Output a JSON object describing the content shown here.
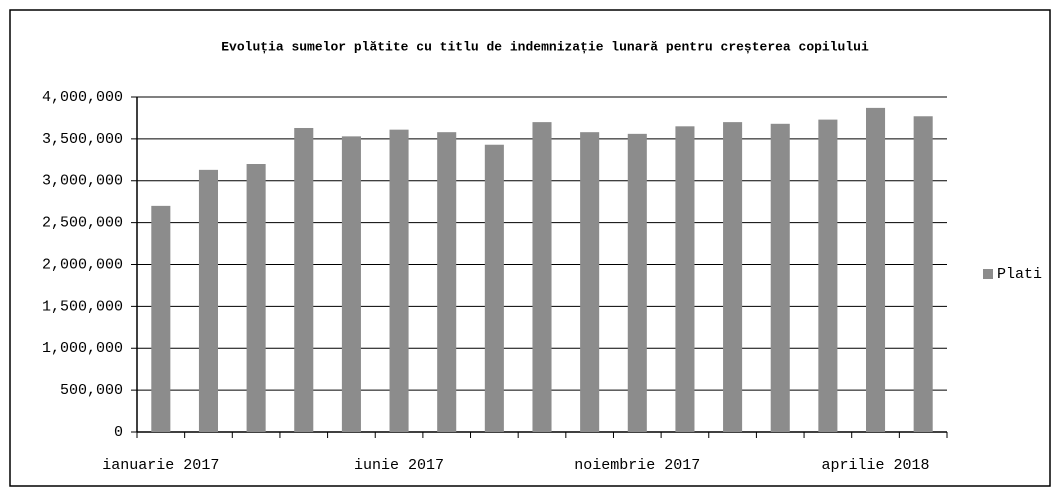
{
  "chart_data": {
    "type": "bar",
    "title": "Evoluția sumelor plătite cu titlu de indemnizație lunară pentru creșterea copilului",
    "categories": [
      "ianuarie 2017",
      null,
      null,
      null,
      null,
      "iunie 2017",
      null,
      null,
      null,
      null,
      "noiembrie 2017",
      null,
      null,
      null,
      null,
      "aprilie 2018",
      null
    ],
    "series": [
      {
        "name": "Plati",
        "color": "#8c8c8c",
        "values": [
          2700000,
          3130000,
          3200000,
          3630000,
          3530000,
          3610000,
          3580000,
          3430000,
          3700000,
          3580000,
          3560000,
          3650000,
          3700000,
          3680000,
          3730000,
          3870000,
          3770000
        ]
      }
    ],
    "ylim": [
      0,
      4000000
    ],
    "yticks": [
      0,
      {
        "value": 500000,
        "label": "500,000"
      },
      {
        "value": 1000000,
        "label": "1,000,000"
      },
      {
        "value": 1500000,
        "label": "1,500,000"
      },
      {
        "value": 2000000,
        "label": "2,000,000"
      },
      {
        "value": 2500000,
        "label": "2,500,000"
      },
      {
        "value": 3000000,
        "label": "3,000,000"
      },
      {
        "value": 3500000,
        "label": "3,500,000"
      },
      {
        "value": 4000000,
        "label": "4,000,000"
      }
    ],
    "grid": true,
    "legend": "right"
  }
}
